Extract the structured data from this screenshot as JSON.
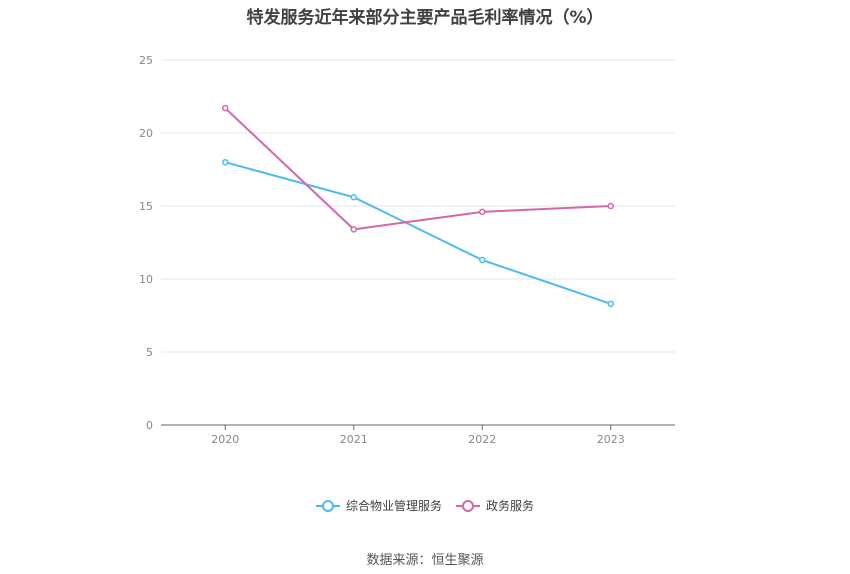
{
  "source_text": "数据来源：恒生聚源",
  "chart_data": {
    "type": "line",
    "title": "特发服务近年来部分主要产品毛利率情况（%）",
    "categories": [
      "2020",
      "2021",
      "2022",
      "2023"
    ],
    "ylim": [
      0,
      25
    ],
    "yticks": [
      0,
      5,
      10,
      15,
      20,
      25
    ],
    "grid": true,
    "legend_position": "bottom-center",
    "series": [
      {
        "name": "综合物业管理服务",
        "color": "#4dbbee",
        "values": [
          18.0,
          15.6,
          11.3,
          8.3
        ]
      },
      {
        "name": "政务服务",
        "color": "#d565ac",
        "values": [
          21.7,
          13.4,
          14.6,
          15.0
        ]
      }
    ]
  }
}
